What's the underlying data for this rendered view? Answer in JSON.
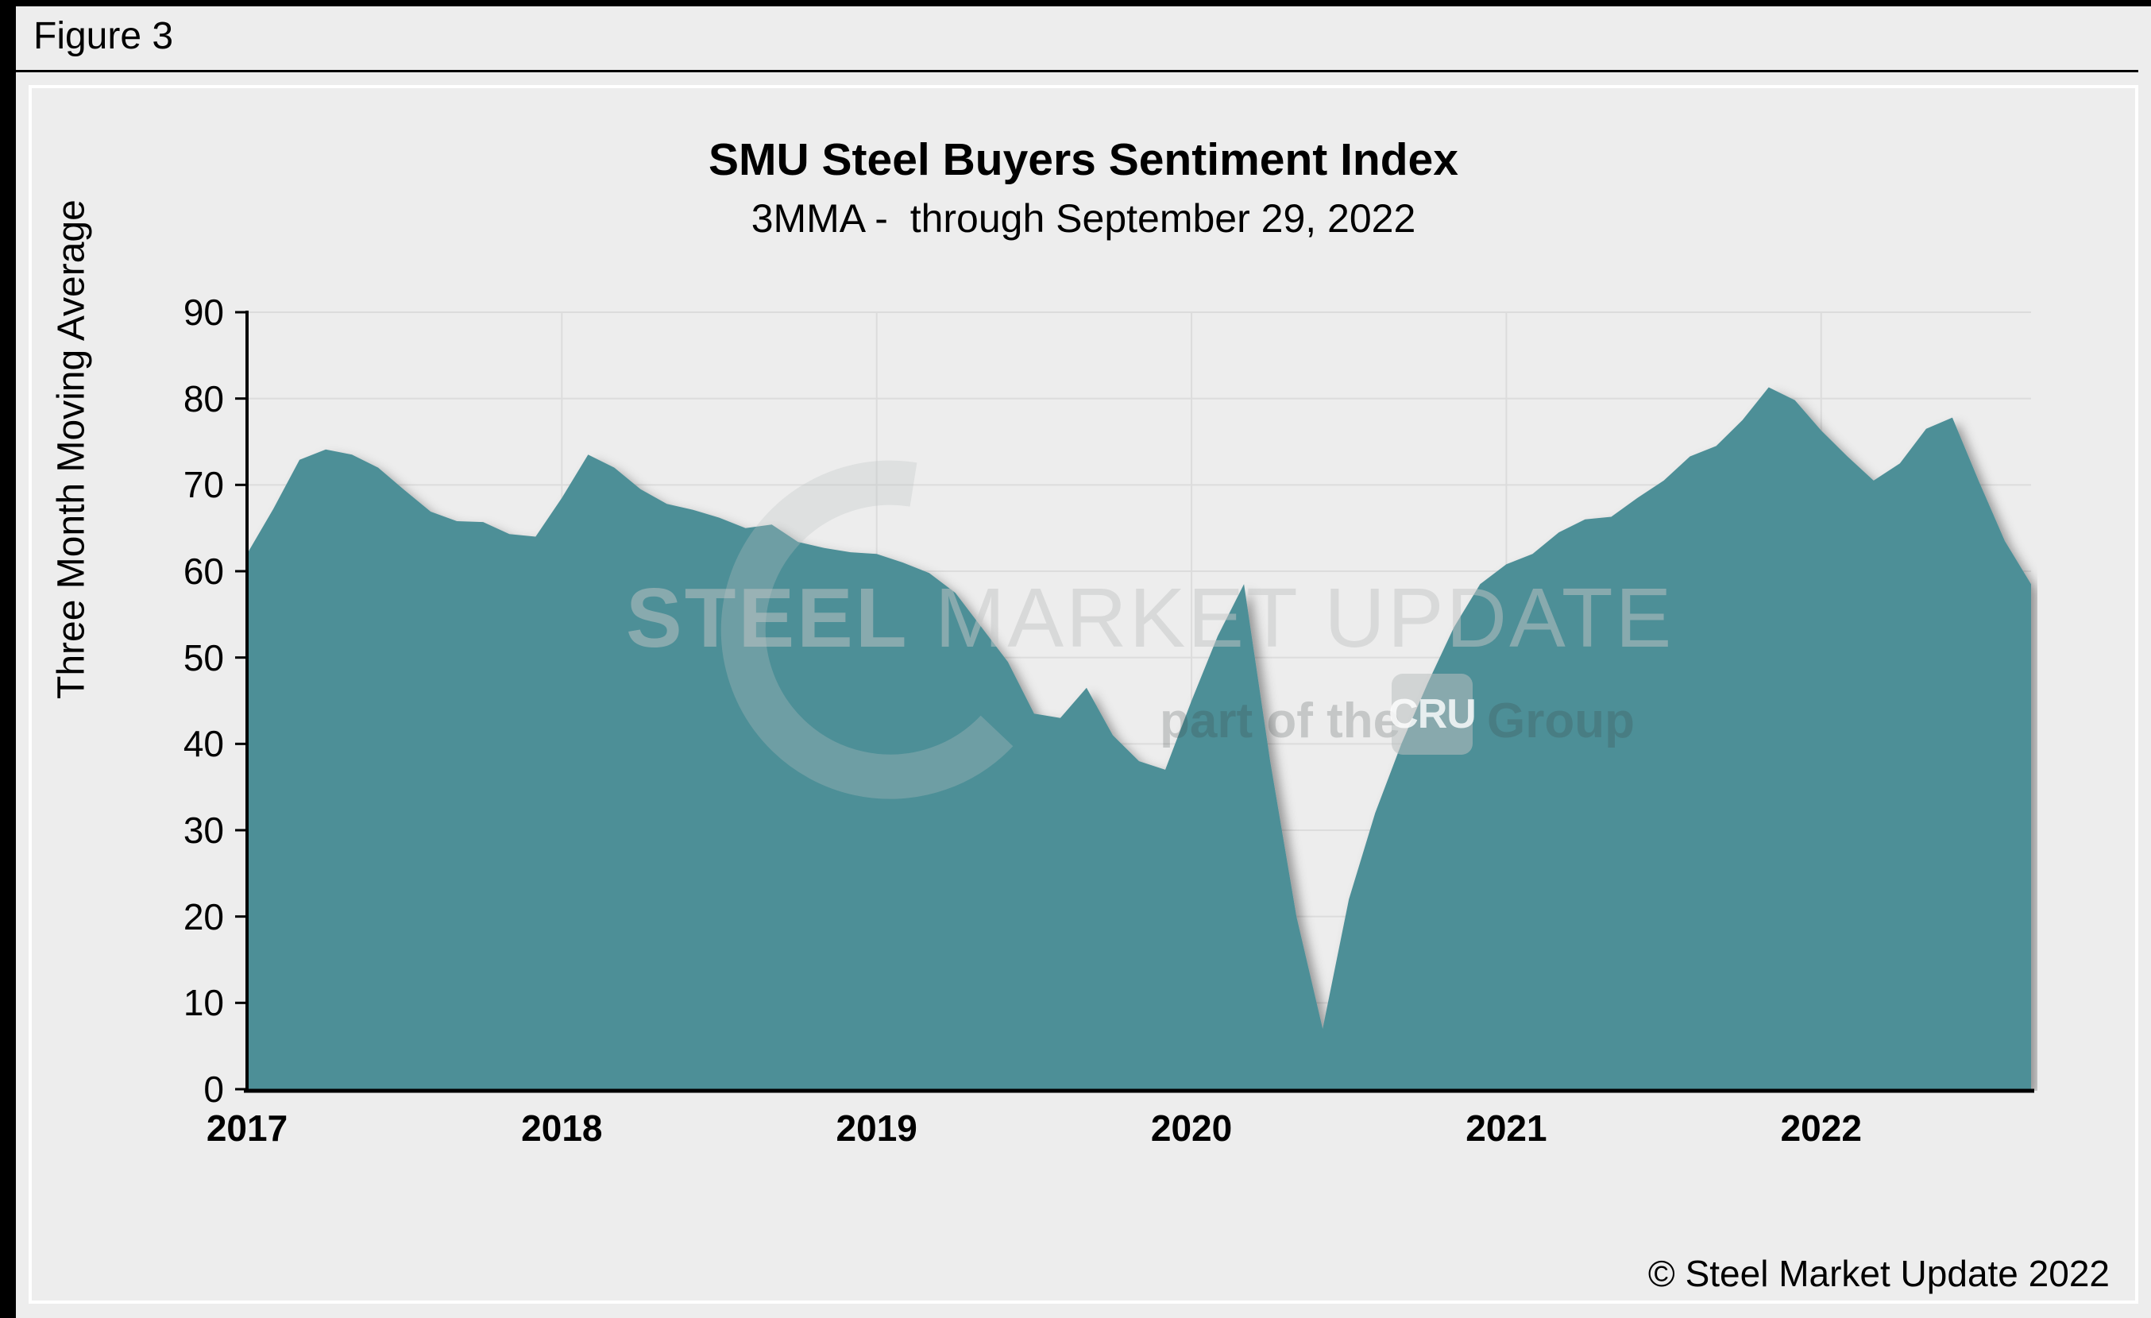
{
  "window": {
    "figure_label": "Figure 3"
  },
  "header": {
    "title": "SMU Steel Buyers Sentiment Index",
    "subtitle": "3MMA -  through September 29, 2022"
  },
  "footer": {
    "copyright": "© Steel Market Update 2022"
  },
  "watermark": {
    "steel": "STEEL",
    "market_update": " MARKET UPDATE",
    "part_of_the": "part of the",
    "cru": "CRU",
    "group": "Group",
    "swoosh_icon": "crescent-swoosh-icon"
  },
  "colors": {
    "page_background": "#EDEDED",
    "plot_background": "#EDEDED",
    "area_fill": "#4E8F97",
    "gridline": "#DCDCDC",
    "axis": "#000000",
    "frame": "#000000",
    "box_border": "#FFFFFF",
    "shadow": "rgba(0,0,0,0.38)"
  },
  "chart_data": {
    "type": "area",
    "title": "SMU Steel Buyers Sentiment Index",
    "subtitle": "3MMA -  through September 29, 2022",
    "xlabel": "",
    "ylabel": "Three Month Moving Average",
    "ylim": [
      0,
      90
    ],
    "yticks": [
      0,
      10,
      20,
      30,
      40,
      50,
      60,
      70,
      80,
      90
    ],
    "x_tick_labels": [
      "2017",
      "2018",
      "2019",
      "2020",
      "2021",
      "2022"
    ],
    "months_per_tick": 12,
    "start_month": "2017-01",
    "end_month": "2022-09",
    "grid": true,
    "legend": false,
    "series": [
      {
        "name": "SMU Steel Buyers Sentiment Index (3MMA)",
        "values": [
          62.0,
          67.2,
          72.9,
          74.1,
          73.5,
          72.0,
          69.4,
          66.9,
          65.8,
          65.7,
          64.3,
          64.0,
          68.5,
          73.5,
          72.0,
          69.5,
          67.8,
          67.1,
          66.2,
          65.0,
          65.4,
          63.4,
          62.7,
          62.2,
          62.0,
          61.0,
          59.8,
          57.5,
          53.5,
          49.5,
          43.5,
          43.0,
          46.5,
          41.0,
          38.0,
          37.0,
          45.0,
          52.5,
          58.5,
          38.0,
          20.0,
          7.0,
          22.0,
          32.0,
          40.0,
          47.0,
          53.5,
          58.5,
          60.8,
          62.0,
          64.5,
          66.0,
          66.3,
          68.5,
          70.5,
          73.3,
          74.5,
          77.5,
          81.3,
          79.8,
          76.3,
          73.3,
          70.5,
          72.5,
          76.5,
          77.8,
          70.5,
          63.5,
          58.5
        ]
      }
    ]
  }
}
